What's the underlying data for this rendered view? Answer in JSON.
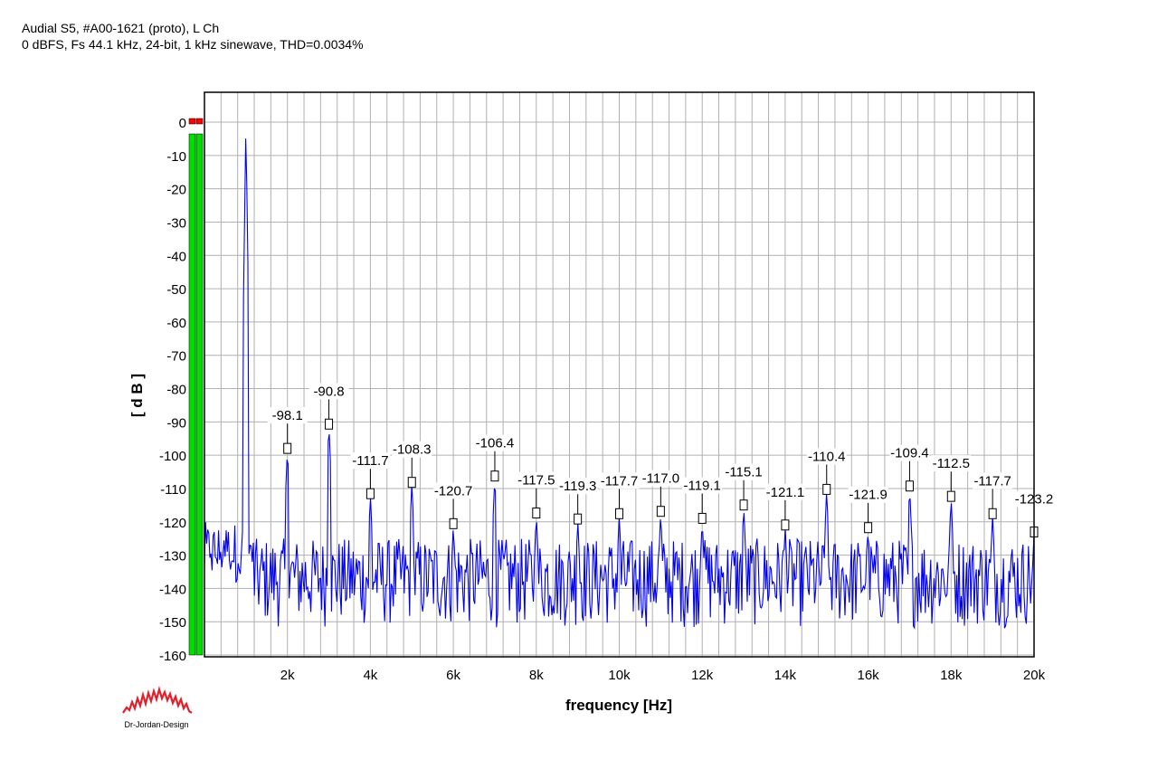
{
  "header": {
    "title_line1": "Audial S5, #A00-1621 (proto), L Ch",
    "title_line2": "0 dBFS, Fs 44.1 kHz, 24-bit, 1 kHz sinewave, THD=0.0034%"
  },
  "logo": {
    "text": "Dr-Jordan-Design",
    "icon": "waveform-logo-icon"
  },
  "meter": {
    "level_fraction": 1.0,
    "clip_indicator_color": "#ff0000",
    "fill_color": "#00dd00"
  },
  "colors": {
    "trace": "#0000ee",
    "grid": "#b0b0b0",
    "plot_bg": "#ffffff"
  },
  "chart_data": {
    "type": "line",
    "xlabel": "frequency [Hz]",
    "ylabel": "[ d B ]",
    "xlim": [
      0,
      20000
    ],
    "ylim": [
      -160,
      10
    ],
    "x_tick_values": [
      2000,
      4000,
      6000,
      8000,
      10000,
      12000,
      14000,
      16000,
      18000,
      20000
    ],
    "x_tick_labels": [
      "2k",
      "4k",
      "6k",
      "8k",
      "10k",
      "12k",
      "14k",
      "16k",
      "18k",
      "20k"
    ],
    "y_tick_values": [
      0,
      -10,
      -20,
      -30,
      -40,
      -50,
      -60,
      -70,
      -80,
      -90,
      -100,
      -110,
      -120,
      -130,
      -140,
      -150,
      -160
    ],
    "y_tick_labels": [
      "0",
      "-10",
      "-20",
      "-30",
      "-40",
      "-50",
      "-60",
      "-70",
      "-80",
      "-90",
      "-100",
      "-110",
      "-120",
      "-130",
      "-140",
      "-150",
      "-160"
    ],
    "x_minor_step": 400,
    "grid": true,
    "fundamental": {
      "x": 1000,
      "y": 0
    },
    "noise_floor_range": [
      -152,
      -125
    ],
    "harmonics": [
      {
        "x": 2000,
        "y": -98.1,
        "label": "-98.1"
      },
      {
        "x": 3000,
        "y": -90.8,
        "label": "-90.8"
      },
      {
        "x": 4000,
        "y": -111.7,
        "label": "-111.7"
      },
      {
        "x": 5000,
        "y": -108.3,
        "label": "-108.3"
      },
      {
        "x": 6000,
        "y": -120.7,
        "label": "-120.7"
      },
      {
        "x": 7000,
        "y": -106.4,
        "label": "-106.4"
      },
      {
        "x": 8000,
        "y": -117.5,
        "label": "-117.5"
      },
      {
        "x": 9000,
        "y": -119.3,
        "label": "-119.3"
      },
      {
        "x": 10000,
        "y": -117.7,
        "label": "-117.7"
      },
      {
        "x": 11000,
        "y": -117.0,
        "label": "-117.0"
      },
      {
        "x": 12000,
        "y": -119.1,
        "label": "-119.1"
      },
      {
        "x": 13000,
        "y": -115.1,
        "label": "-115.1"
      },
      {
        "x": 14000,
        "y": -121.1,
        "label": "-121.1"
      },
      {
        "x": 15000,
        "y": -110.4,
        "label": "-110.4"
      },
      {
        "x": 16000,
        "y": -121.9,
        "label": "-121.9"
      },
      {
        "x": 17000,
        "y": -109.4,
        "label": "-109.4"
      },
      {
        "x": 18000,
        "y": -112.5,
        "label": "-112.5"
      },
      {
        "x": 19000,
        "y": -117.7,
        "label": "-117.7"
      },
      {
        "x": 20000,
        "y": -123.2,
        "label": "-123.2"
      }
    ]
  }
}
